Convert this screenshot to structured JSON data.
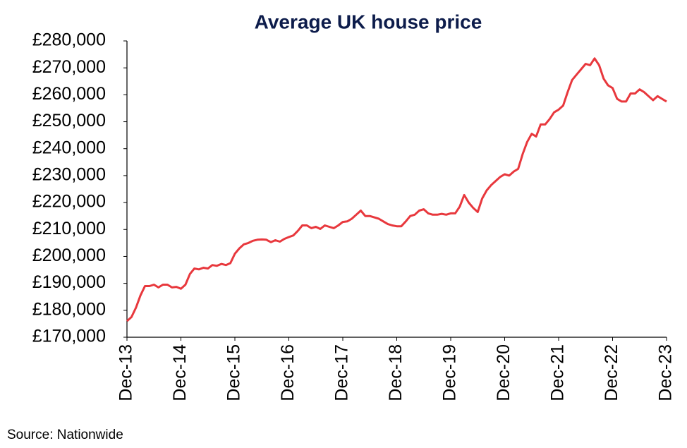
{
  "chart_data": {
    "type": "line",
    "title": "Average UK house price",
    "source": "Source: Nationwide",
    "categories": [
      "Dec-13",
      null,
      null,
      null,
      null,
      null,
      null,
      null,
      null,
      null,
      null,
      null,
      "Dec-14",
      null,
      null,
      null,
      null,
      null,
      null,
      null,
      null,
      null,
      null,
      null,
      "Dec-15",
      null,
      null,
      null,
      null,
      null,
      null,
      null,
      null,
      null,
      null,
      null,
      "Dec-16",
      null,
      null,
      null,
      null,
      null,
      null,
      null,
      null,
      null,
      null,
      null,
      "Dec-17",
      null,
      null,
      null,
      null,
      null,
      null,
      null,
      null,
      null,
      null,
      null,
      "Dec-18",
      null,
      null,
      null,
      null,
      null,
      null,
      null,
      null,
      null,
      null,
      null,
      "Dec-19",
      null,
      null,
      null,
      null,
      null,
      null,
      null,
      null,
      null,
      null,
      null,
      "Dec-20",
      null,
      null,
      null,
      null,
      null,
      null,
      null,
      null,
      null,
      null,
      null,
      "Dec-21",
      null,
      null,
      null,
      null,
      null,
      null,
      null,
      null,
      null,
      null,
      null,
      "Dec-22",
      null,
      null,
      null,
      null,
      null,
      null,
      null,
      null,
      null,
      null,
      null,
      "Dec-23"
    ],
    "series": [
      {
        "name": "Average UK house price",
        "color": "#e8383d",
        "values": [
          176000,
          177500,
          181000,
          185500,
          189000,
          189000,
          189500,
          188500,
          189500,
          189500,
          188500,
          188700,
          188000,
          189500,
          193500,
          195500,
          195200,
          195800,
          195500,
          196800,
          196500,
          197200,
          196800,
          197500,
          201000,
          203000,
          204500,
          205000,
          205800,
          206200,
          206300,
          206200,
          205300,
          206000,
          205500,
          206500,
          207200,
          207800,
          209500,
          211500,
          211500,
          210500,
          211000,
          210200,
          211500,
          211000,
          210500,
          211500,
          212800,
          213000,
          214000,
          215500,
          217000,
          215000,
          215000,
          214500,
          214000,
          213000,
          212000,
          211500,
          211200,
          211200,
          213000,
          215000,
          215500,
          217000,
          217500,
          216000,
          215500,
          215500,
          215800,
          215500,
          216000,
          216000,
          218500,
          222800,
          220000,
          218000,
          216500,
          221500,
          224500,
          226500,
          228000,
          229500,
          230500,
          230000,
          231500,
          232500,
          238000,
          242500,
          245500,
          244500,
          249000,
          249000,
          251000,
          253500,
          254500,
          256000,
          261000,
          265500,
          267500,
          269500,
          271500,
          271000,
          273500,
          271000,
          266000,
          263500,
          262500,
          258500,
          257500,
          257500,
          260500,
          260500,
          262000,
          261000,
          259500,
          258000,
          259500,
          258500,
          257500
        ]
      }
    ],
    "ylim": [
      170000,
      280000
    ],
    "yticks": [
      {
        "value": 170000,
        "label": "£170,000"
      },
      {
        "value": 180000,
        "label": "£180,000"
      },
      {
        "value": 190000,
        "label": "£190,000"
      },
      {
        "value": 200000,
        "label": "£200,000"
      },
      {
        "value": 210000,
        "label": "£210,000"
      },
      {
        "value": 220000,
        "label": "£220,000"
      },
      {
        "value": 230000,
        "label": "£230,000"
      },
      {
        "value": 240000,
        "label": "£240,000"
      },
      {
        "value": 250000,
        "label": "£250,000"
      },
      {
        "value": 260000,
        "label": "£260,000"
      },
      {
        "value": 270000,
        "label": "£270,000"
      },
      {
        "value": 280000,
        "label": "£280,000"
      }
    ],
    "grid": false
  }
}
